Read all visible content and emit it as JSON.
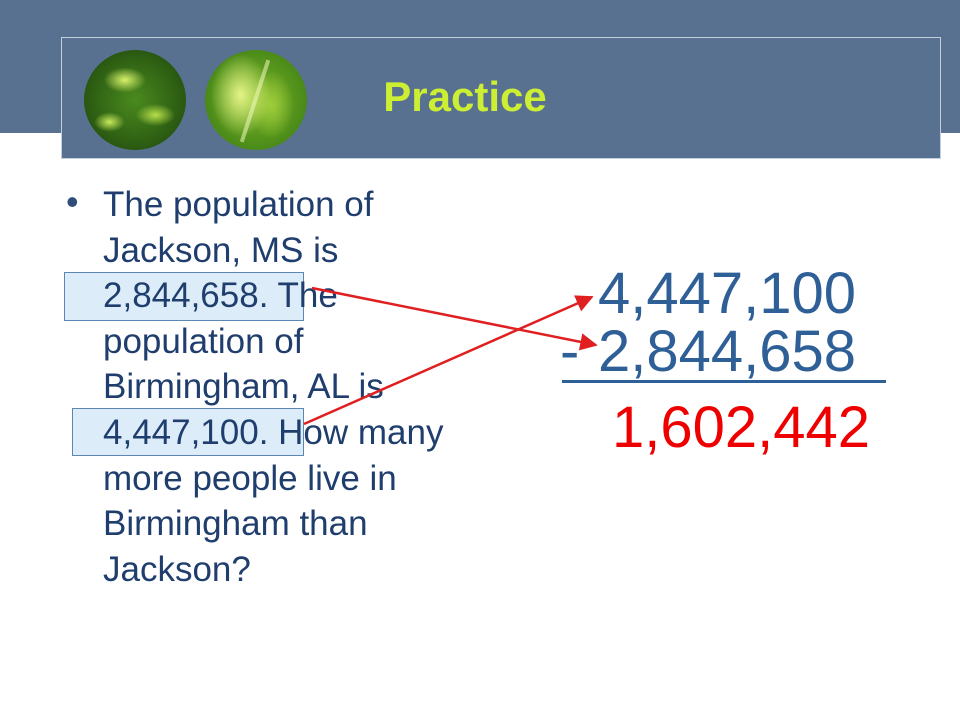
{
  "slide": {
    "title": "Practice",
    "bullet_marker": "•",
    "problem_text": "The population of Jackson, MS is 2,844,658.  The population of Birmingham, AL is 4,447,100.  How many more people live in Birmingham than Jackson?"
  },
  "calculation": {
    "minuend": "4,447,100",
    "operator": "-",
    "subtrahend": "2,844,658",
    "difference": "1,602,442"
  },
  "colors": {
    "header_band": "#587191",
    "title": "#ccee33",
    "body_text": "#1f3e6e",
    "numbers": "#2e5f96",
    "answer": "#ee0000",
    "arrows": "#e02020",
    "highlight_fill": "#d6eaf8"
  },
  "icons": [
    "leaf-photo-icon",
    "leaf-photo-icon",
    "bullet-icon",
    "arrow-icon"
  ]
}
